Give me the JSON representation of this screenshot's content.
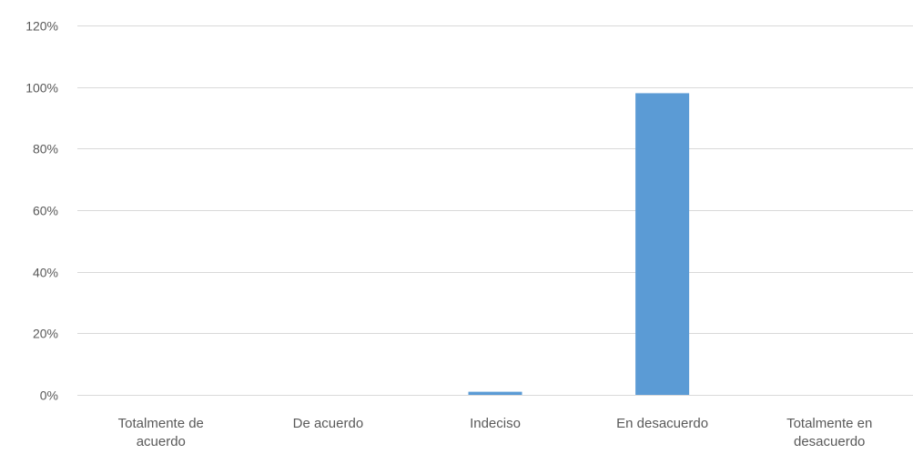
{
  "chart_data": {
    "type": "bar",
    "categories": [
      [
        "Totalmente de",
        "acuerdo"
      ],
      [
        "De acuerdo"
      ],
      [
        "Indeciso"
      ],
      [
        "En desacuerdo"
      ],
      [
        "Totalmente en",
        "desacuerdo"
      ]
    ],
    "values": [
      0,
      0,
      1,
      98,
      0
    ],
    "ylim": [
      0,
      120
    ],
    "yticks": [
      0,
      20,
      40,
      60,
      80,
      100,
      120
    ],
    "ytick_labels": [
      "0%",
      "20%",
      "40%",
      "60%",
      "80%",
      "100%",
      "120%"
    ],
    "grid": true,
    "legend": "none",
    "colors": {
      "bar": "#5b9bd5",
      "grid": "#d9d9d9",
      "text": "#595959"
    }
  }
}
